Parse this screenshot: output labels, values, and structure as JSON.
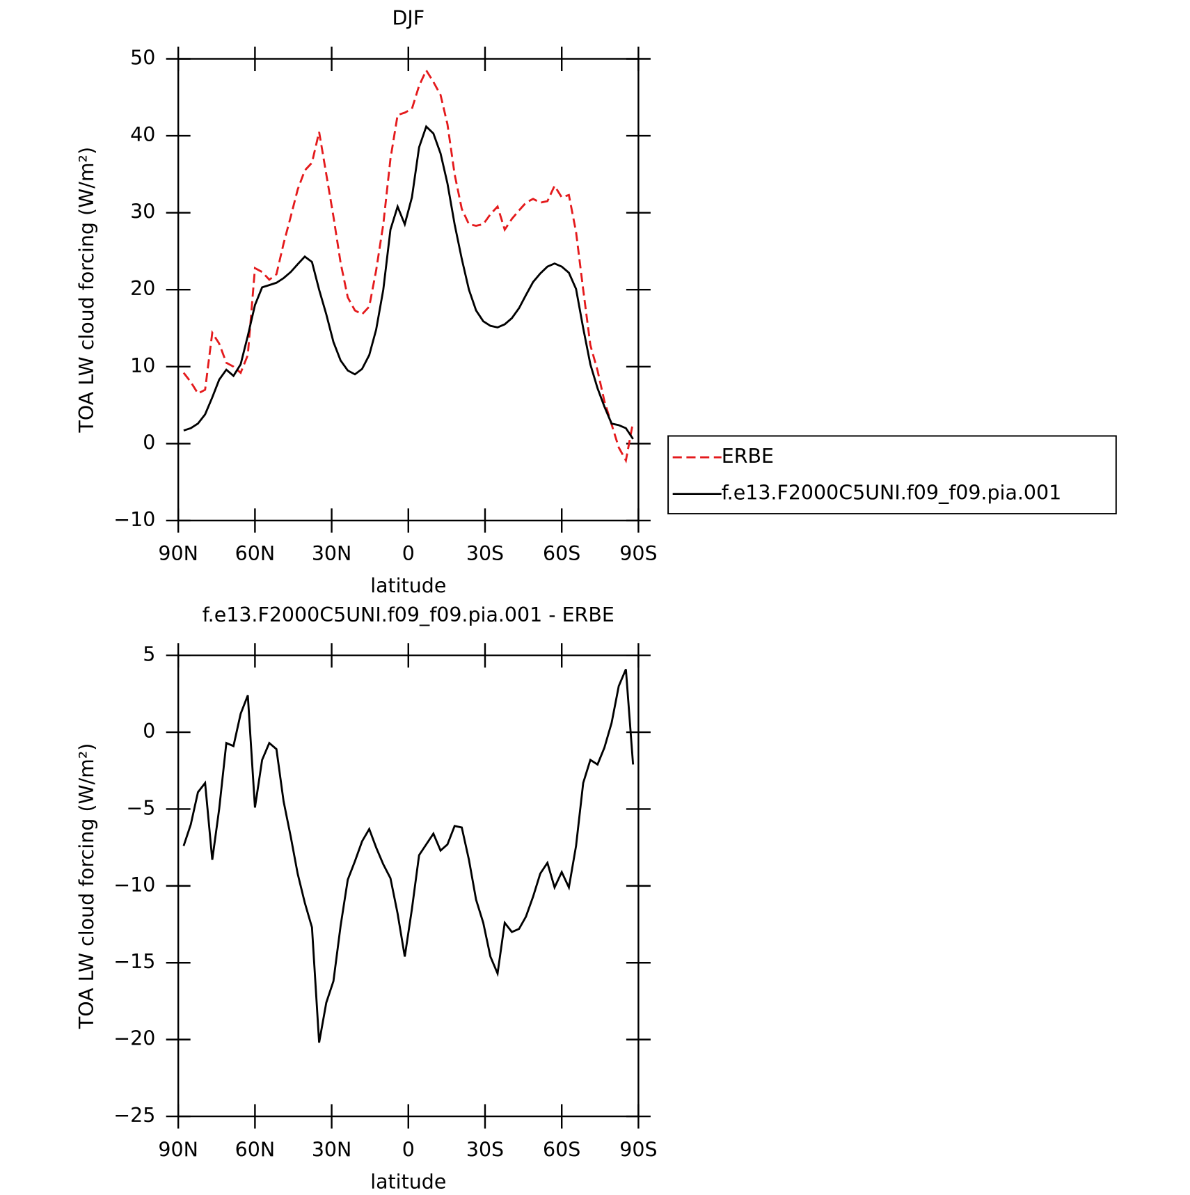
{
  "chart_data": [
    {
      "type": "line",
      "title": "DJF",
      "xlabel": "latitude",
      "ylabel": "TOA LW cloud forcing (W/m²)",
      "x": [
        87.9,
        85.1,
        82.3,
        79.5,
        76.7,
        74.0,
        71.2,
        68.4,
        65.6,
        62.8,
        60.0,
        57.2,
        54.4,
        51.6,
        48.8,
        46.0,
        43.3,
        40.5,
        37.7,
        34.9,
        32.1,
        29.3,
        26.5,
        23.7,
        20.9,
        18.1,
        15.3,
        12.6,
        9.8,
        7.0,
        4.2,
        1.4,
        -1.4,
        -4.2,
        -7.0,
        -9.8,
        -12.6,
        -15.3,
        -18.1,
        -20.9,
        -23.7,
        -26.5,
        -29.3,
        -32.1,
        -34.9,
        -37.7,
        -40.5,
        -43.3,
        -46.0,
        -48.8,
        -51.6,
        -54.4,
        -57.2,
        -60.0,
        -62.8,
        -65.6,
        -68.4,
        -71.2,
        -74.0,
        -76.7,
        -79.5,
        -82.3,
        -85.1,
        -87.9
      ],
      "series": [
        {
          "name": "ERBE",
          "color": "#e41a1c",
          "dash": true,
          "values": [
            9.2,
            8.0,
            6.5,
            7.0,
            14.4,
            13.0,
            10.5,
            10.0,
            9.2,
            11.5,
            22.8,
            22.3,
            21.3,
            22.0,
            26.0,
            29.5,
            33.0,
            35.5,
            36.5,
            40.5,
            35.0,
            29.5,
            23.5,
            19.0,
            17.3,
            16.8,
            17.8,
            22.5,
            28.5,
            37.0,
            42.7,
            43.0,
            43.5,
            46.5,
            48.5,
            47.0,
            45.3,
            41.5,
            35.0,
            30.5,
            28.5,
            28.3,
            28.5,
            29.8,
            30.8,
            27.8,
            29.2,
            30.3,
            31.3,
            31.8,
            31.3,
            31.5,
            33.5,
            32.0,
            32.3,
            27.5,
            20.0,
            12.8,
            9.5,
            5.5,
            2.5,
            -0.5,
            -2.2,
            2.8
          ]
        },
        {
          "name": "f.e13.F2000C5UNI.f09_f09.pia.001",
          "color": "#000000",
          "dash": false,
          "values": [
            1.7,
            2.0,
            2.6,
            3.8,
            6.0,
            8.3,
            9.6,
            8.8,
            10.3,
            14.0,
            18.0,
            20.3,
            20.6,
            20.9,
            21.5,
            22.3,
            23.3,
            24.3,
            23.6,
            20.0,
            16.8,
            13.2,
            10.8,
            9.5,
            9.0,
            9.7,
            11.5,
            14.8,
            20.0,
            27.8,
            30.8,
            28.5,
            32.0,
            38.5,
            41.2,
            40.3,
            37.7,
            33.8,
            28.5,
            24.0,
            20.0,
            17.3,
            15.9,
            15.3,
            15.1,
            15.5,
            16.3,
            17.6,
            19.3,
            21.0,
            22.1,
            23.0,
            23.4,
            23.0,
            22.2,
            20.1,
            15.0,
            10.3,
            7.2,
            4.8,
            2.6,
            2.4,
            2.0,
            0.6
          ]
        }
      ],
      "xlim": [
        90,
        -90
      ],
      "xticks": [
        {
          "value": 90,
          "label": "90N"
        },
        {
          "value": 60,
          "label": "60N"
        },
        {
          "value": 30,
          "label": "30N"
        },
        0,
        {
          "value": -30,
          "label": "30S"
        },
        {
          "value": -60,
          "label": "60S"
        },
        {
          "value": -90,
          "label": "90S"
        }
      ],
      "ylim": [
        -10,
        50
      ],
      "yticks": [
        {
          "value": -10,
          "label": "−10"
        },
        0,
        10,
        20,
        30,
        40,
        50
      ],
      "legend": "outside right"
    },
    {
      "type": "line",
      "title": "f.e13.F2000C5UNI.f09_f09.pia.001 - ERBE",
      "xlabel": "latitude",
      "ylabel": "TOA LW cloud forcing (W/m²)",
      "x": [
        87.9,
        85.1,
        82.3,
        79.5,
        76.7,
        74.0,
        71.2,
        68.4,
        65.6,
        62.8,
        60.0,
        57.2,
        54.4,
        51.6,
        48.8,
        46.0,
        43.3,
        40.5,
        37.7,
        34.9,
        32.1,
        29.3,
        26.5,
        23.7,
        20.9,
        18.1,
        15.3,
        12.6,
        9.8,
        7.0,
        4.2,
        1.4,
        -1.4,
        -4.2,
        -7.0,
        -9.8,
        -12.6,
        -15.3,
        -18.1,
        -20.9,
        -23.7,
        -26.5,
        -29.3,
        -32.1,
        -34.9,
        -37.7,
        -40.5,
        -43.3,
        -46.0,
        -48.8,
        -51.6,
        -54.4,
        -57.2,
        -60.0,
        -62.8,
        -65.6,
        -68.4,
        -71.2,
        -74.0,
        -76.7,
        -79.5,
        -82.3,
        -85.1,
        -87.9
      ],
      "series": [
        {
          "color": "#000000",
          "dash": false,
          "values": [
            -7.4,
            -6.0,
            -3.9,
            -3.3,
            -8.3,
            -5.0,
            -0.7,
            -0.9,
            1.2,
            2.4,
            -4.9,
            -1.8,
            -0.7,
            -1.1,
            -4.5,
            -6.8,
            -9.2,
            -11.1,
            -12.7,
            -20.2,
            -17.6,
            -16.2,
            -12.6,
            -9.6,
            -8.4,
            -7.1,
            -6.3,
            -7.5,
            -8.6,
            -9.5,
            -11.8,
            -14.6,
            -11.5,
            -8.0,
            -7.3,
            -6.6,
            -7.7,
            -7.3,
            -6.1,
            -6.2,
            -8.3,
            -10.9,
            -12.4,
            -14.6,
            -15.7,
            -12.4,
            -13.0,
            -12.8,
            -12.0,
            -10.7,
            -9.2,
            -8.5,
            -10.1,
            -9.1,
            -10.1,
            -7.4,
            -3.3,
            -1.8,
            -2.1,
            -1.0,
            0.6,
            3.0,
            4.1,
            -2.1
          ]
        }
      ],
      "xlim": [
        90,
        -90
      ],
      "xticks": [
        {
          "value": 90,
          "label": "90N"
        },
        {
          "value": 60,
          "label": "60N"
        },
        {
          "value": 30,
          "label": "30N"
        },
        0,
        {
          "value": -30,
          "label": "30S"
        },
        {
          "value": -60,
          "label": "60S"
        },
        {
          "value": -90,
          "label": "90S"
        }
      ],
      "ylim": [
        -25,
        5
      ],
      "yticks": [
        {
          "value": -25,
          "label": "−25"
        },
        {
          "value": -20,
          "label": "−20"
        },
        {
          "value": -15,
          "label": "−15"
        },
        {
          "value": -10,
          "label": "−10"
        },
        {
          "value": -5,
          "label": "−5"
        },
        0,
        5
      ]
    }
  ]
}
